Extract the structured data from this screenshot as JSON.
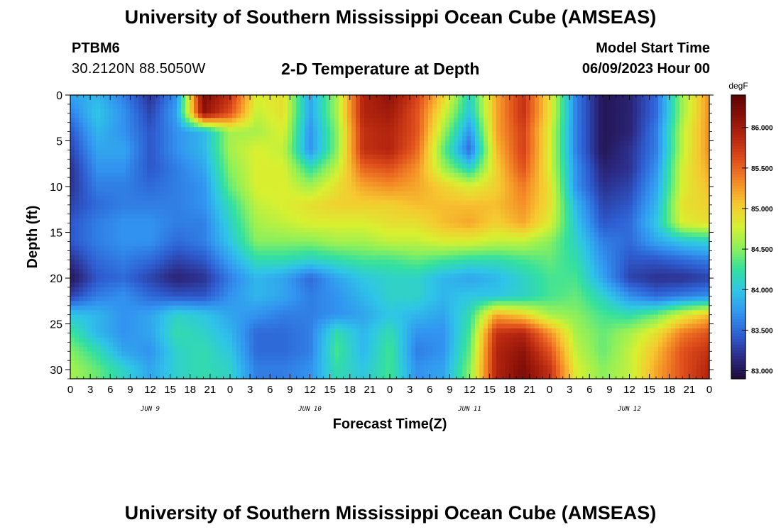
{
  "header": {
    "title": "University of Southern Mississippi Ocean Cube (AMSEAS)",
    "footer_title": "University of Southern Mississippi Ocean Cube (AMSEAS)",
    "station": "PTBM6",
    "coordinates": "30.2120N  88.5050W",
    "subtitle": "2-D Temperature at Depth",
    "model_start_label": "Model Start Time",
    "model_start_value": "06/09/2023 Hour 00"
  },
  "chart_data": {
    "type": "heatmap",
    "title": "2-D Temperature at Depth",
    "xlabel": "Forecast Time(Z)",
    "ylabel": "Depth (ft)",
    "units": "degF",
    "x_hours_range": [
      0,
      96
    ],
    "x_tick_labels": [
      "0",
      "3",
      "6",
      "9",
      "12",
      "15",
      "18",
      "21",
      "0",
      "3",
      "6",
      "9",
      "12",
      "15",
      "18",
      "21",
      "0",
      "3",
      "6",
      "9",
      "12",
      "15",
      "18",
      "21",
      "0",
      "3",
      "6",
      "9",
      "12",
      "15",
      "18",
      "21",
      "0"
    ],
    "date_labels": [
      "JUN 9",
      "JUN 10",
      "JUN 11",
      "JUN 12"
    ],
    "y_ticks": [
      0,
      5,
      10,
      15,
      20,
      25,
      30
    ],
    "ylim": [
      0,
      31
    ],
    "y_inverted": true,
    "colorbar": {
      "label": "degF",
      "range": [
        82.9,
        86.4
      ],
      "ticks": [
        "83.000",
        "83.500",
        "84.000",
        "84.500",
        "85.000",
        "85.500",
        "86.000"
      ],
      "tick_values": [
        83.0,
        83.5,
        84.0,
        84.5,
        85.0,
        85.5,
        86.0
      ],
      "colors": [
        "#200a38",
        "#2c2b86",
        "#2e5ed2",
        "#3294f0",
        "#2fc4e8",
        "#33e0a0",
        "#8ef05a",
        "#d8f030",
        "#f6c830",
        "#f48a26",
        "#e0501c",
        "#b82810",
        "#8a1008",
        "#5c0404"
      ]
    },
    "depths": [
      0,
      2,
      4,
      6,
      8,
      10,
      12,
      14,
      16,
      18,
      20,
      22,
      24,
      26,
      28,
      30
    ],
    "times": [
      0,
      4,
      8,
      12,
      16,
      20,
      24,
      28,
      32,
      36,
      40,
      44,
      48,
      52,
      56,
      60,
      64,
      68,
      72,
      76,
      80,
      84,
      88,
      92,
      96
    ],
    "values": [
      [
        83.8,
        83.9,
        83.6,
        83.2,
        83.7,
        86.2,
        85.8,
        84.8,
        84.9,
        83.8,
        84.6,
        85.9,
        86.1,
        85.7,
        85.0,
        84.1,
        85.2,
        85.8,
        84.9,
        83.6,
        83.0,
        83.1,
        83.5,
        84.6,
        85.3
      ],
      [
        83.6,
        84.0,
        83.7,
        83.3,
        83.8,
        86.1,
        85.6,
        84.7,
        84.9,
        83.8,
        84.6,
        85.9,
        86.0,
        85.6,
        84.8,
        84.0,
        85.2,
        85.8,
        84.9,
        83.6,
        83.0,
        83.1,
        83.5,
        84.6,
        85.3
      ],
      [
        83.4,
        83.9,
        83.7,
        83.4,
        83.7,
        83.9,
        84.6,
        84.6,
        84.8,
        83.7,
        84.5,
        85.8,
        85.9,
        85.6,
        84.6,
        83.7,
        85.2,
        85.7,
        84.8,
        83.6,
        83.0,
        83.1,
        83.6,
        84.7,
        85.3
      ],
      [
        83.3,
        83.8,
        83.8,
        83.4,
        83.7,
        83.9,
        84.6,
        84.8,
        84.7,
        83.7,
        84.5,
        85.8,
        85.9,
        85.5,
        84.4,
        83.5,
        85.1,
        85.7,
        84.8,
        83.6,
        83.0,
        83.2,
        83.6,
        84.7,
        85.3
      ],
      [
        83.2,
        83.7,
        83.7,
        83.4,
        83.6,
        83.8,
        84.5,
        84.8,
        84.8,
        84.2,
        84.7,
        85.5,
        85.6,
        85.3,
        84.6,
        84.1,
        85.0,
        85.6,
        84.8,
        83.7,
        83.1,
        83.2,
        83.7,
        84.8,
        85.2
      ],
      [
        83.2,
        83.6,
        83.6,
        83.5,
        83.6,
        83.7,
        84.4,
        84.8,
        84.8,
        84.6,
        84.9,
        85.2,
        85.3,
        85.2,
        85.0,
        84.8,
        85.0,
        85.4,
        84.9,
        83.7,
        83.2,
        83.3,
        83.8,
        84.8,
        85.1
      ],
      [
        83.3,
        83.5,
        83.6,
        83.6,
        83.6,
        83.7,
        84.2,
        84.7,
        84.8,
        84.9,
        85.0,
        85.0,
        85.0,
        85.1,
        85.1,
        85.1,
        85.1,
        85.3,
        84.9,
        83.9,
        83.3,
        83.4,
        83.9,
        84.9,
        85.0
      ],
      [
        83.4,
        83.6,
        83.7,
        83.7,
        83.6,
        83.6,
        84.1,
        84.6,
        84.7,
        84.8,
        84.8,
        84.8,
        84.9,
        84.9,
        85.1,
        85.2,
        85.0,
        85.2,
        84.8,
        84.0,
        83.4,
        83.5,
        84.0,
        84.8,
        84.9
      ],
      [
        83.4,
        83.6,
        83.7,
        83.7,
        83.5,
        83.6,
        84.0,
        84.5,
        84.5,
        84.5,
        84.6,
        84.6,
        84.7,
        84.7,
        84.8,
        84.8,
        84.7,
        84.7,
        84.5,
        84.1,
        83.6,
        83.5,
        83.8,
        84.0,
        84.1
      ],
      [
        83.2,
        83.5,
        83.6,
        83.5,
        83.3,
        83.4,
        83.8,
        84.2,
        84.2,
        84.1,
        84.2,
        84.3,
        84.3,
        84.4,
        84.3,
        84.2,
        84.2,
        84.3,
        84.4,
        84.2,
        83.7,
        83.4,
        83.4,
        83.5,
        83.6
      ],
      [
        83.0,
        83.4,
        83.5,
        83.3,
        83.1,
        83.2,
        83.6,
        83.9,
        83.8,
        83.5,
        83.8,
        84.0,
        84.1,
        84.1,
        83.9,
        83.8,
        83.9,
        84.1,
        84.3,
        84.3,
        83.8,
        83.3,
        83.2,
        83.2,
        83.3
      ],
      [
        83.3,
        83.6,
        83.7,
        83.5,
        83.4,
        83.4,
        83.7,
        83.9,
        83.8,
        83.6,
        83.7,
        83.9,
        84.1,
        84.1,
        83.9,
        84.0,
        84.0,
        84.1,
        84.3,
        84.4,
        84.1,
        83.7,
        83.5,
        83.6,
        83.7
      ],
      [
        84.0,
        83.9,
        83.7,
        83.8,
        84.1,
        84.0,
        83.8,
        83.7,
        83.6,
        83.6,
        83.7,
        83.8,
        84.0,
        83.9,
        83.8,
        84.2,
        85.2,
        85.0,
        84.6,
        84.5,
        84.3,
        84.2,
        84.4,
        84.8,
        85.1
      ],
      [
        84.3,
        83.9,
        83.7,
        83.8,
        84.2,
        84.1,
        83.9,
        83.5,
        83.5,
        83.6,
        84.2,
        83.9,
        84.2,
        83.7,
        83.7,
        84.3,
        85.8,
        85.9,
        85.3,
        84.6,
        84.4,
        84.6,
        84.9,
        85.4,
        85.6
      ],
      [
        84.5,
        84.2,
        83.8,
        83.7,
        84.1,
        84.2,
        84.0,
        83.5,
        83.5,
        83.6,
        84.3,
        83.9,
        84.3,
        83.6,
        83.7,
        84.4,
        85.9,
        86.1,
        85.6,
        84.7,
        84.4,
        84.7,
        85.1,
        85.6,
        85.8
      ],
      [
        84.6,
        84.4,
        84.1,
        83.8,
        84.1,
        84.2,
        84.1,
        83.6,
        83.6,
        83.7,
        84.2,
        84.0,
        84.3,
        83.7,
        83.8,
        84.5,
        85.9,
        86.2,
        85.8,
        84.8,
        84.5,
        84.7,
        85.2,
        85.6,
        85.9
      ]
    ]
  }
}
